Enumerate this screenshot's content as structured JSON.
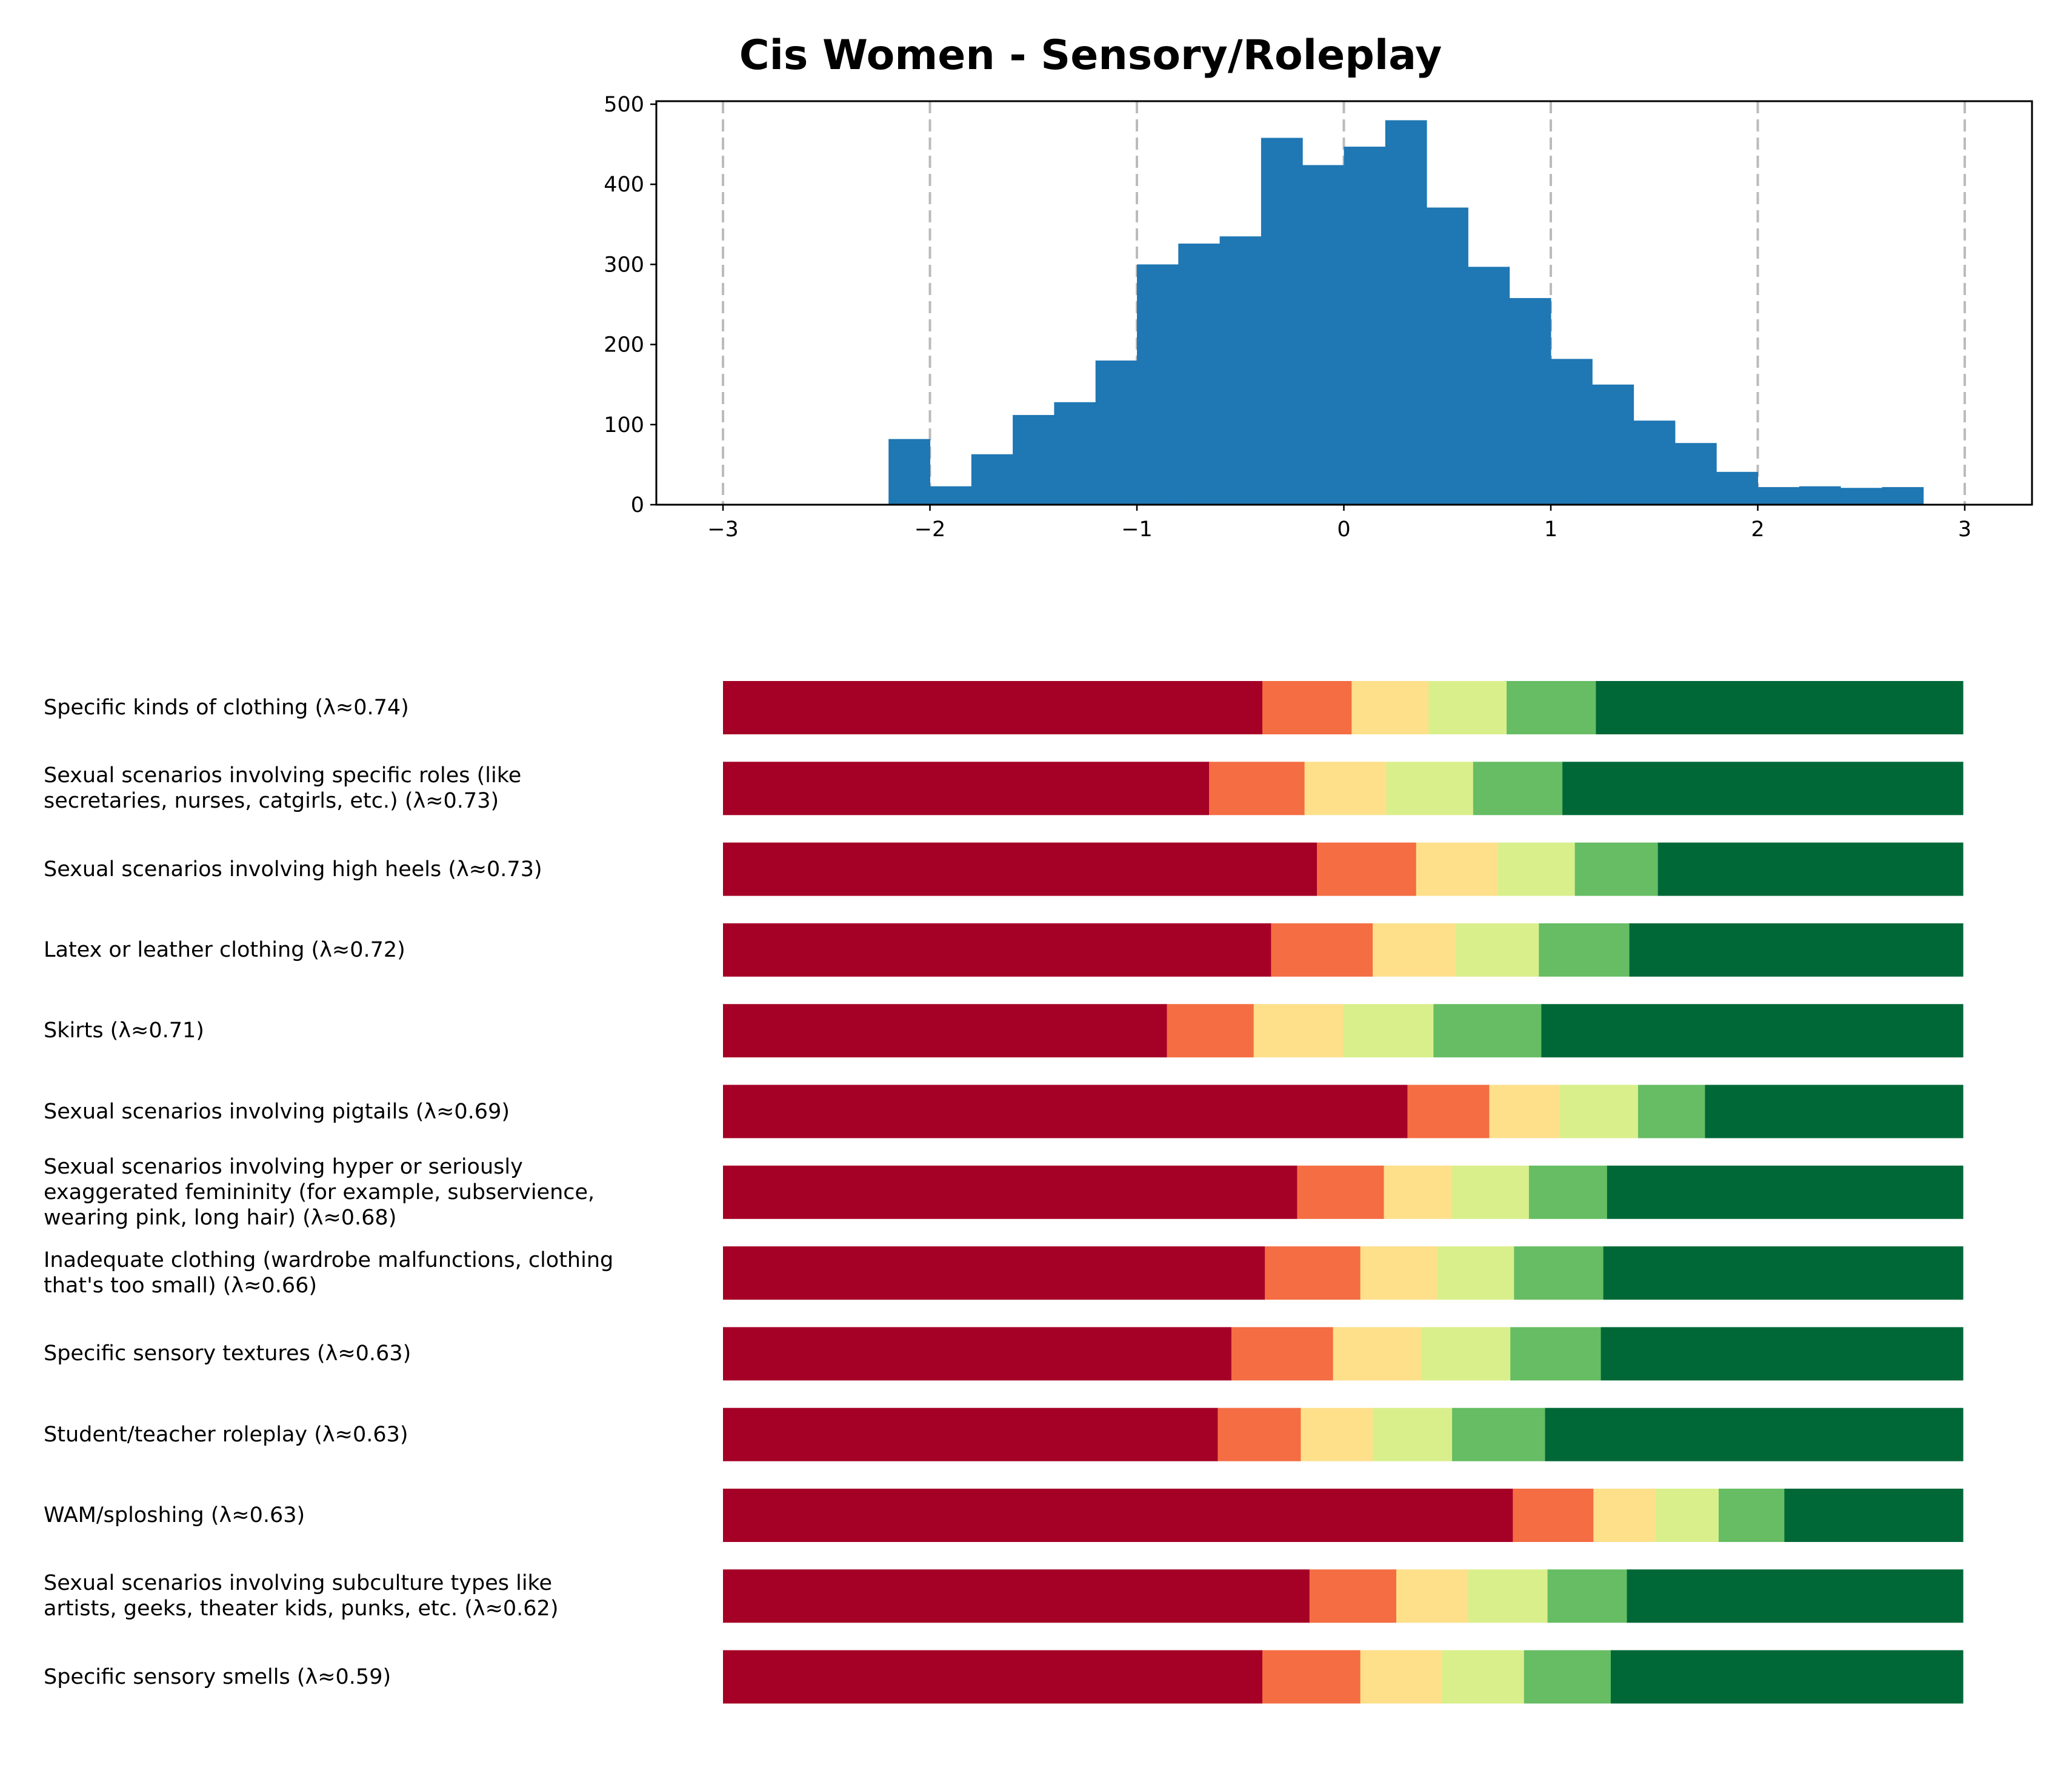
{
  "chart_data": [
    {
      "type": "bar",
      "subtype": "histogram",
      "title": "Cis Women - Sensory/Roleplay",
      "xlabel": "",
      "ylabel": "",
      "xlim": [
        -3.3,
        3.3
      ],
      "ylim": [
        0,
        500
      ],
      "xticks": [
        "−3",
        "−2",
        "−1",
        "0",
        "1",
        "2",
        "3"
      ],
      "xtick_values": [
        -3,
        -2,
        -1,
        0,
        1,
        2,
        3
      ],
      "yticks": [
        "0",
        "100",
        "200",
        "300",
        "400",
        "500"
      ],
      "ytick_values": [
        0,
        100,
        200,
        300,
        400,
        500
      ],
      "grid": "vertical dashed at integer x",
      "color": "#1f77b4",
      "bin_width": 0.2,
      "bin_starts": [
        -2.2,
        -2.0,
        -1.8,
        -1.6,
        -1.4,
        -1.2,
        -1.0,
        -0.8,
        -0.6,
        -0.4,
        -0.2,
        0.0,
        0.2,
        0.4,
        0.6,
        0.8,
        1.0,
        1.2,
        1.4,
        1.6,
        1.8,
        2.0,
        2.2,
        2.4,
        2.6
      ],
      "values": [
        82,
        23,
        63,
        112,
        128,
        180,
        300,
        326,
        335,
        458,
        424,
        447,
        480,
        371,
        297,
        258,
        182,
        150,
        105,
        77,
        41,
        22,
        23,
        21,
        22
      ]
    },
    {
      "type": "bar",
      "subtype": "stacked-horizontal-100%",
      "title": "",
      "segment_colors": [
        "#a50026",
        "#f46d43",
        "#fee08b",
        "#d9ef8b",
        "#66bd63",
        "#006837"
      ],
      "categories": [
        "Specific kinds of clothing (λ≈0.74)",
        "Sexual scenarios involving specific roles (like\nsecretaries, nurses, catgirls, etc.) (λ≈0.73)",
        "Sexual scenarios involving high heels (λ≈0.73)",
        "Latex or leather clothing (λ≈0.72)",
        "Skirts (λ≈0.71)",
        "Sexual scenarios involving pigtails (λ≈0.69)",
        "Sexual scenarios involving hyper or seriously\nexaggerated femininity (for example, subservience,\nwearing pink, long hair) (λ≈0.68)",
        "Inadequate clothing (wardrobe malfunctions, clothing\nthat's too small) (λ≈0.66)",
        "Specific sensory textures (λ≈0.63)",
        "Student/teacher roleplay (λ≈0.63)",
        "WAM/sploshing (λ≈0.63)",
        "Sexual scenarios involving subculture types like\nartists, geeks, theater kids, punks, etc. (λ≈0.62)",
        "Specific sensory smells (λ≈0.59)"
      ],
      "segments_percent": [
        [
          43.5,
          7.2,
          6.2,
          6.3,
          7.2,
          29.6
        ],
        [
          39.2,
          7.7,
          6.6,
          7.0,
          7.2,
          32.3
        ],
        [
          47.9,
          8.0,
          6.6,
          6.2,
          6.7,
          24.6
        ],
        [
          44.2,
          8.2,
          6.7,
          6.7,
          7.3,
          26.9
        ],
        [
          35.8,
          7.0,
          7.2,
          7.3,
          8.7,
          34.0
        ],
        [
          55.2,
          6.6,
          5.7,
          6.3,
          5.4,
          20.8
        ],
        [
          46.3,
          7.0,
          5.5,
          6.2,
          6.3,
          28.7
        ],
        [
          43.7,
          7.7,
          6.2,
          6.2,
          7.2,
          29.0
        ],
        [
          41.0,
          8.2,
          7.1,
          7.2,
          7.3,
          29.2
        ],
        [
          39.9,
          6.7,
          5.8,
          6.4,
          7.5,
          33.7
        ],
        [
          63.7,
          6.5,
          5.0,
          5.1,
          5.3,
          14.4
        ],
        [
          47.3,
          7.0,
          5.8,
          6.4,
          6.4,
          27.1
        ],
        [
          43.5,
          7.9,
          6.6,
          6.6,
          7.0,
          28.4
        ]
      ],
      "axes_visible": false
    }
  ]
}
